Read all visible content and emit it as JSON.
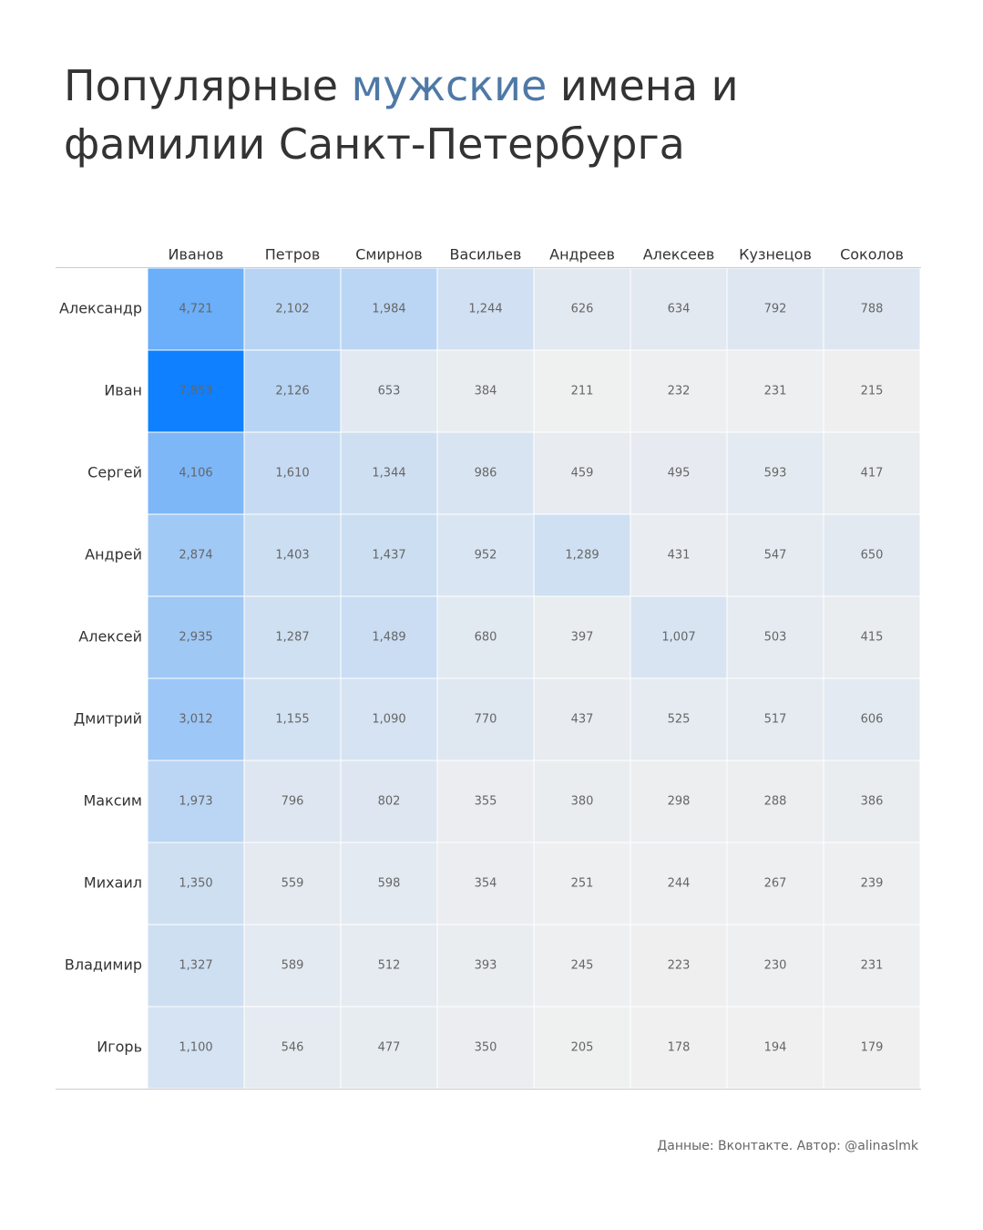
{
  "chart_data": {
    "type": "heatmap",
    "title": [
      "Популярные",
      "мужские",
      "имена и фамилии Санкт-Петербурга"
    ],
    "title_highlight_color": "#4e79a7",
    "columns": [
      "Иванов",
      "Петров",
      "Смирнов",
      "Васильев",
      "Андреев",
      "Алексеев",
      "Кузнецов",
      "Соколов"
    ],
    "rows": [
      "Александр",
      "Иван",
      "Сергей",
      "Андрей",
      "Алексей",
      "Дмитрий",
      "Максим",
      "Михаил",
      "Владимир",
      "Игорь"
    ],
    "values": [
      [
        4721,
        2102,
        1984,
        1244,
        626,
        634,
        792,
        788
      ],
      [
        7853,
        2126,
        653,
        384,
        211,
        232,
        231,
        215
      ],
      [
        4106,
        1610,
        1344,
        986,
        459,
        495,
        593,
        417
      ],
      [
        2874,
        1403,
        1437,
        952,
        1289,
        431,
        547,
        650
      ],
      [
        2935,
        1287,
        1489,
        680,
        397,
        1007,
        503,
        415
      ],
      [
        3012,
        1155,
        1090,
        770,
        437,
        525,
        517,
        606
      ],
      [
        1973,
        796,
        802,
        355,
        380,
        298,
        288,
        386
      ],
      [
        1350,
        559,
        598,
        354,
        251,
        244,
        267,
        239
      ],
      [
        1327,
        589,
        512,
        393,
        245,
        223,
        230,
        231
      ],
      [
        1100,
        546,
        477,
        350,
        205,
        178,
        194,
        179
      ]
    ],
    "value_labels": [
      [
        "4,721",
        "2,102",
        "1,984",
        "1,244",
        "626",
        "634",
        "792",
        "788"
      ],
      [
        "7,853",
        "2,126",
        "653",
        "384",
        "211",
        "232",
        "231",
        "215"
      ],
      [
        "4,106",
        "1,610",
        "1,344",
        "986",
        "459",
        "495",
        "593",
        "417"
      ],
      [
        "2,874",
        "1,403",
        "1,437",
        "952",
        "1,289",
        "431",
        "547",
        "650"
      ],
      [
        "2,935",
        "1,287",
        "1,489",
        "680",
        "397",
        "1,007",
        "503",
        "415"
      ],
      [
        "3,012",
        "1,155",
        "1,090",
        "770",
        "437",
        "525",
        "517",
        "606"
      ],
      [
        "1,973",
        "796",
        "802",
        "355",
        "380",
        "298",
        "288",
        "386"
      ],
      [
        "1,350",
        "559",
        "598",
        "354",
        "251",
        "244",
        "267",
        "239"
      ],
      [
        "1,327",
        "589",
        "512",
        "393",
        "245",
        "223",
        "230",
        "231"
      ],
      [
        "1,100",
        "546",
        "477",
        "350",
        "205",
        "178",
        "194",
        "179"
      ]
    ],
    "color_range": [
      "#f0f0f0",
      "#0f80ff"
    ],
    "footer": "Данные: Вконтакте. Автор: @alinaslmk"
  }
}
